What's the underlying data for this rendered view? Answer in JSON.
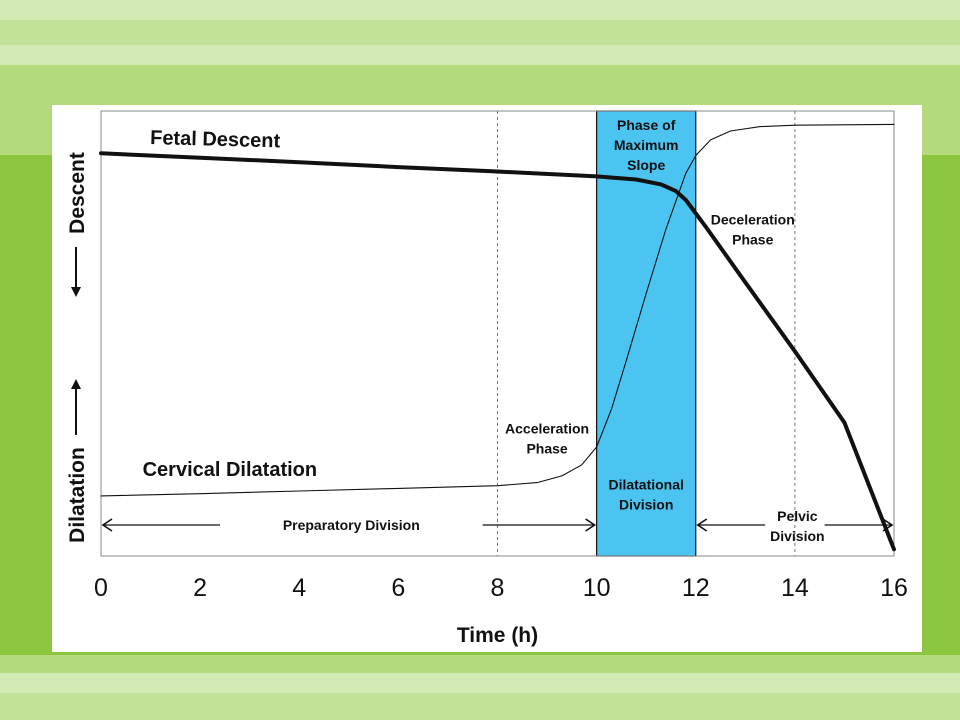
{
  "slide": {
    "colors": {
      "background": "#8cc63f",
      "band_light": "#d3eab4",
      "band_mid": "#b3db7d",
      "band_pale": "#c2e29a",
      "panel": "#ffffff",
      "highlight": "#4cc4f1"
    }
  },
  "chart_data": {
    "type": "line",
    "xlabel": "Time (h)",
    "ylabel_low": "Dilatation",
    "ylabel_high": "Descent",
    "xlim": [
      0,
      16
    ],
    "ylim": [
      0,
      1
    ],
    "x_ticks": [
      "0",
      "2",
      "4",
      "6",
      "8",
      "10",
      "12",
      "14",
      "16"
    ],
    "grid_x": [
      8,
      14
    ],
    "grid": "vertical dashed",
    "highlight_region": {
      "x_start": 10,
      "x_end": 12,
      "color": "#4cc4f1",
      "label_top": [
        "Phase of",
        "Maximum",
        "Slope"
      ],
      "label_bottom": [
        "Dilatational",
        "Division"
      ]
    },
    "series": [
      {
        "name": "Fetal Descent",
        "style": "thick",
        "x": [
          0,
          2,
          4,
          6,
          8,
          10,
          10.8,
          11.3,
          11.6,
          11.8,
          12.2,
          13,
          14,
          15,
          16
        ],
        "y": [
          0.905,
          0.895,
          0.885,
          0.874,
          0.864,
          0.853,
          0.846,
          0.835,
          0.82,
          0.8,
          0.74,
          0.615,
          0.46,
          0.3,
          0.015
        ]
      },
      {
        "name": "Cervical Dilatation",
        "style": "thin",
        "x": [
          0,
          2,
          4,
          6,
          8,
          8.8,
          9.3,
          9.7,
          10,
          10.3,
          10.6,
          11,
          11.4,
          11.8,
          12,
          12.3,
          12.7,
          13.3,
          14,
          16
        ],
        "y": [
          0.135,
          0.14,
          0.146,
          0.152,
          0.158,
          0.165,
          0.18,
          0.205,
          0.245,
          0.33,
          0.44,
          0.59,
          0.735,
          0.86,
          0.9,
          0.935,
          0.955,
          0.965,
          0.968,
          0.97
        ]
      }
    ],
    "annotations": {
      "acceleration": [
        "Acceleration",
        "Phase"
      ],
      "deceleration": [
        "Deceleration",
        "Phase"
      ]
    },
    "divisions": [
      {
        "label": [
          "Preparatory Division"
        ],
        "x_start": 0,
        "x_end": 10
      },
      {
        "label": [
          "Pelvic",
          "Division"
        ],
        "x_start": 12,
        "x_end": 16
      }
    ]
  }
}
